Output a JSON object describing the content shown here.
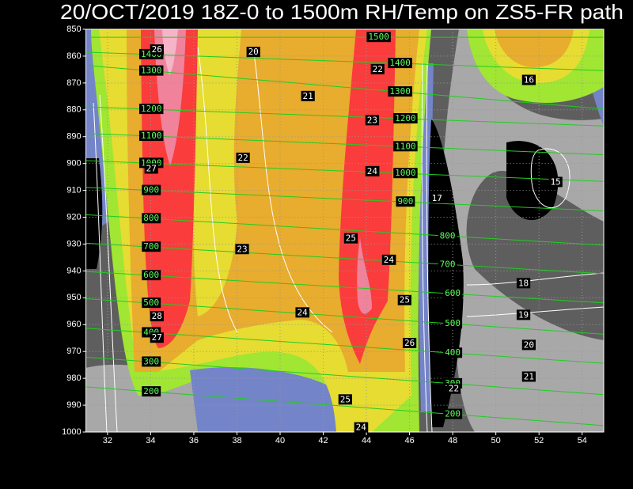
{
  "chart_data": {
    "type": "contour",
    "title": "20/OCT/2019 18Z-0 to 1500m RH/Temp on ZS5-FR path",
    "xlim": [
      31,
      55
    ],
    "xticks": [
      32,
      34,
      36,
      38,
      40,
      42,
      44,
      46,
      48,
      50,
      52,
      54
    ],
    "ylim": [
      1000,
      850
    ],
    "yticks": [
      850,
      860,
      870,
      880,
      890,
      900,
      910,
      920,
      930,
      940,
      950,
      960,
      970,
      980,
      990,
      1000
    ],
    "grid": true,
    "height_color": "#22cc22",
    "height_label_color": "#5cff5c",
    "temp_label_color": "#ffffff",
    "temp_labels": [
      {
        "x": 38.76,
        "p": 858.6,
        "value": 20
      },
      {
        "x": 41.29,
        "p": 875,
        "value": 21
      },
      {
        "x": 38.28,
        "p": 898,
        "value": 22
      },
      {
        "x": 38.24,
        "p": 932,
        "value": 23
      },
      {
        "x": 41.03,
        "p": 955.6,
        "value": 24
      },
      {
        "x": 43.02,
        "p": 988,
        "value": 25
      },
      {
        "x": 43.75,
        "p": 998.4,
        "value": 24
      },
      {
        "x": 43.28,
        "p": 928,
        "value": 25
      },
      {
        "x": 45.04,
        "p": 936,
        "value": 24
      },
      {
        "x": 45.77,
        "p": 951,
        "value": 25
      },
      {
        "x": 46.0,
        "p": 967,
        "value": 26
      },
      {
        "x": 44.27,
        "p": 903,
        "value": 24
      },
      {
        "x": 44.27,
        "p": 884,
        "value": 23
      },
      {
        "x": 44.52,
        "p": 865,
        "value": 22
      },
      {
        "x": 34.29,
        "p": 957,
        "value": 28
      },
      {
        "x": 34.29,
        "p": 965,
        "value": 27
      },
      {
        "x": 34.03,
        "p": 902,
        "value": 27
      },
      {
        "x": 34.29,
        "p": 857.7,
        "value": 26
      },
      {
        "x": 47.27,
        "p": 913,
        "value": 17
      },
      {
        "x": 51.53,
        "p": 869,
        "value": 16
      },
      {
        "x": 52.77,
        "p": 907,
        "value": 15
      },
      {
        "x": 51.28,
        "p": 944.7,
        "value": 18
      },
      {
        "x": 51.28,
        "p": 956.5,
        "value": 19
      },
      {
        "x": 51.53,
        "p": 967.7,
        "value": 20
      },
      {
        "x": 51.53,
        "p": 979.5,
        "value": 21
      },
      {
        "x": 48.05,
        "p": 984,
        "value": 22
      }
    ],
    "height_contours": [
      {
        "value": 1500,
        "points": [
          [
            44.57,
            853
          ]
        ]
      },
      {
        "value": 1400,
        "points": [
          [
            34.03,
            859.4
          ],
          [
            45.56,
            862.7
          ]
        ]
      },
      {
        "value": 1300,
        "points": [
          [
            34.03,
            865.5
          ],
          [
            45.56,
            873.3
          ]
        ]
      },
      {
        "value": 1200,
        "points": [
          [
            34.03,
            879.8
          ],
          [
            45.81,
            883.3
          ]
        ]
      },
      {
        "value": 1100,
        "points": [
          [
            34.03,
            889.8
          ],
          [
            45.81,
            893.7
          ]
        ]
      },
      {
        "value": 1000,
        "points": [
          [
            34.03,
            899.9
          ],
          [
            45.81,
            903.7
          ]
        ]
      },
      {
        "value": 900,
        "points": [
          [
            34.03,
            910
          ],
          [
            45.81,
            914.3
          ]
        ]
      },
      {
        "value": 800,
        "points": [
          [
            34.03,
            920.5
          ],
          [
            47.76,
            927
          ]
        ]
      },
      {
        "value": 700,
        "points": [
          [
            34.03,
            931.1
          ],
          [
            47.76,
            937.6
          ]
        ]
      },
      {
        "value": 600,
        "points": [
          [
            34.03,
            941.7
          ],
          [
            48.0,
            948.5
          ]
        ]
      },
      {
        "value": 500,
        "points": [
          [
            34.03,
            952
          ],
          [
            48.0,
            959.7
          ]
        ]
      },
      {
        "value": 400,
        "points": [
          [
            34.03,
            963
          ],
          [
            48.0,
            970.6
          ]
        ]
      },
      {
        "value": 300,
        "points": [
          [
            34.03,
            973.9
          ],
          [
            48.0,
            982
          ]
        ]
      },
      {
        "value": 200,
        "points": [
          [
            34.03,
            985
          ],
          [
            48.0,
            993.4
          ]
        ]
      }
    ]
  }
}
